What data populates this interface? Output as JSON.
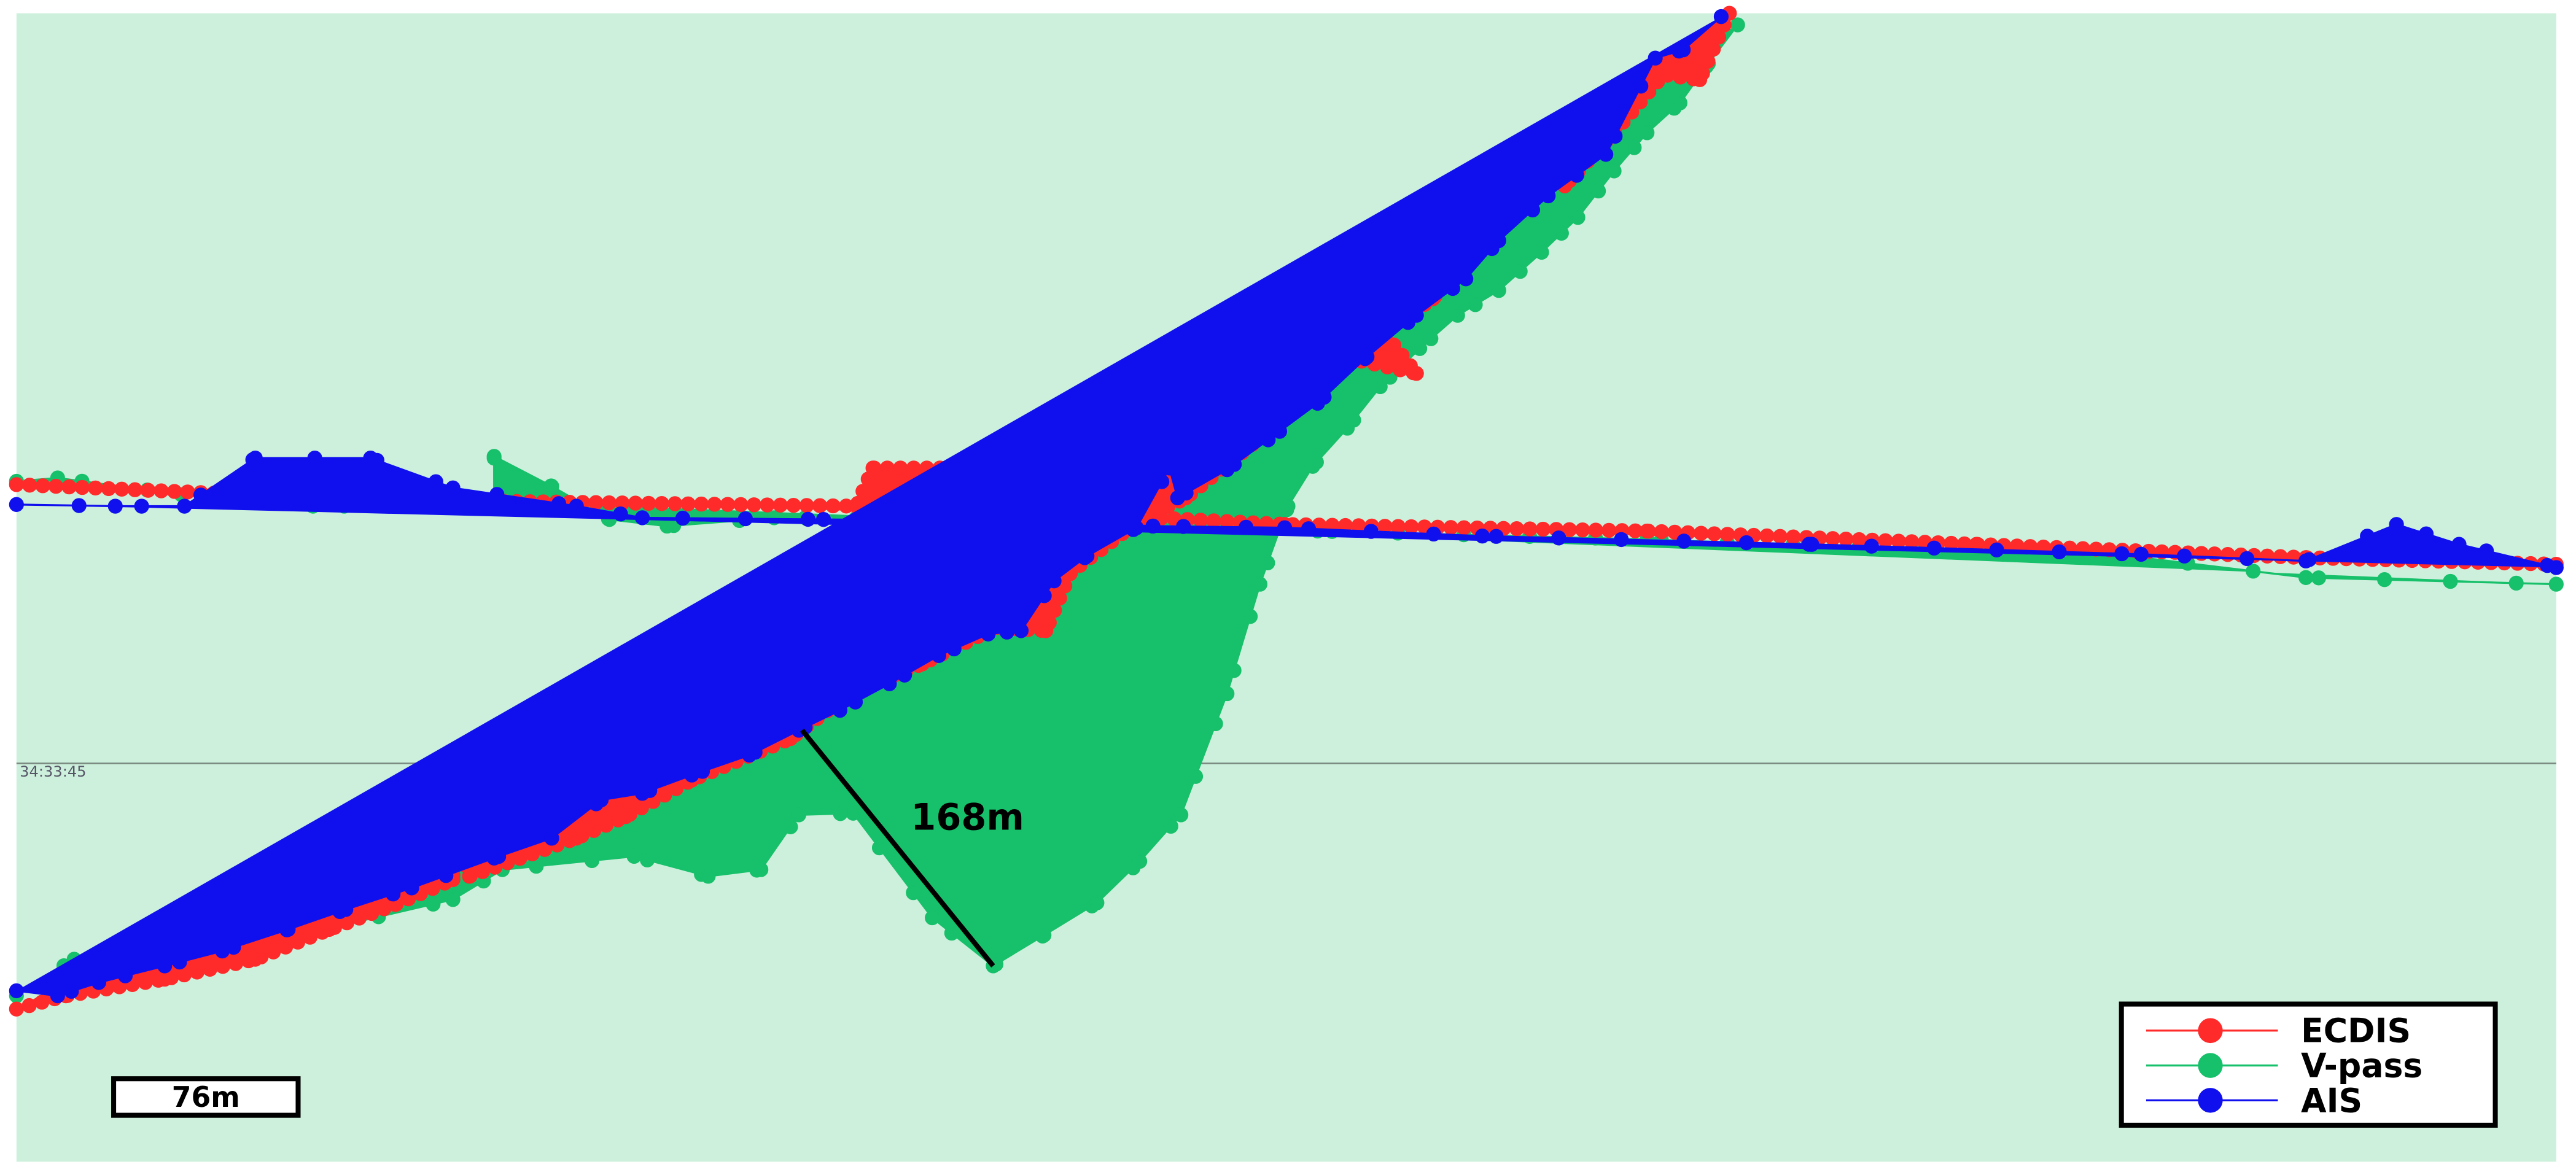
{
  "grid_label": "34:33:45",
  "measurement": "168m",
  "scale_bar": "76m",
  "legend": [
    "ECDIS",
    "V-pass",
    "AIS"
  ]
}
